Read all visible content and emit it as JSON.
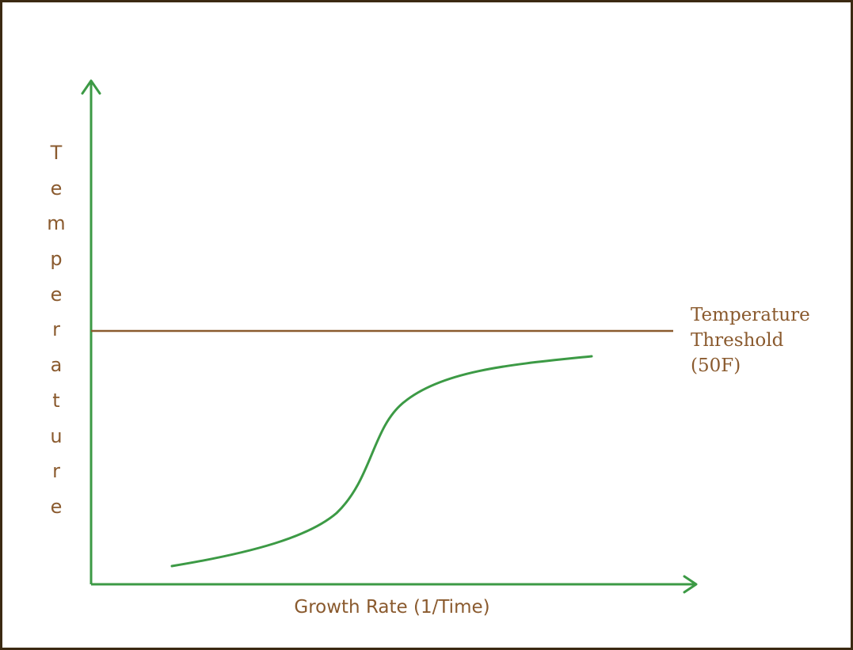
{
  "colors": {
    "border": "#3b2a12",
    "axis": "#3c9a45",
    "curve": "#3c9a45",
    "threshold_line": "#8a5a2e",
    "text": "#8a5a2e"
  },
  "y_axis": {
    "label": "Temperature",
    "letters": [
      "T",
      "e",
      "m",
      "p",
      "e",
      "r",
      "a",
      "t",
      "u",
      "r",
      "e"
    ]
  },
  "x_axis": {
    "label": "Growth Rate (1/Time)"
  },
  "threshold": {
    "lines": [
      "Temperature",
      "Threshold",
      "(50F)"
    ]
  }
}
